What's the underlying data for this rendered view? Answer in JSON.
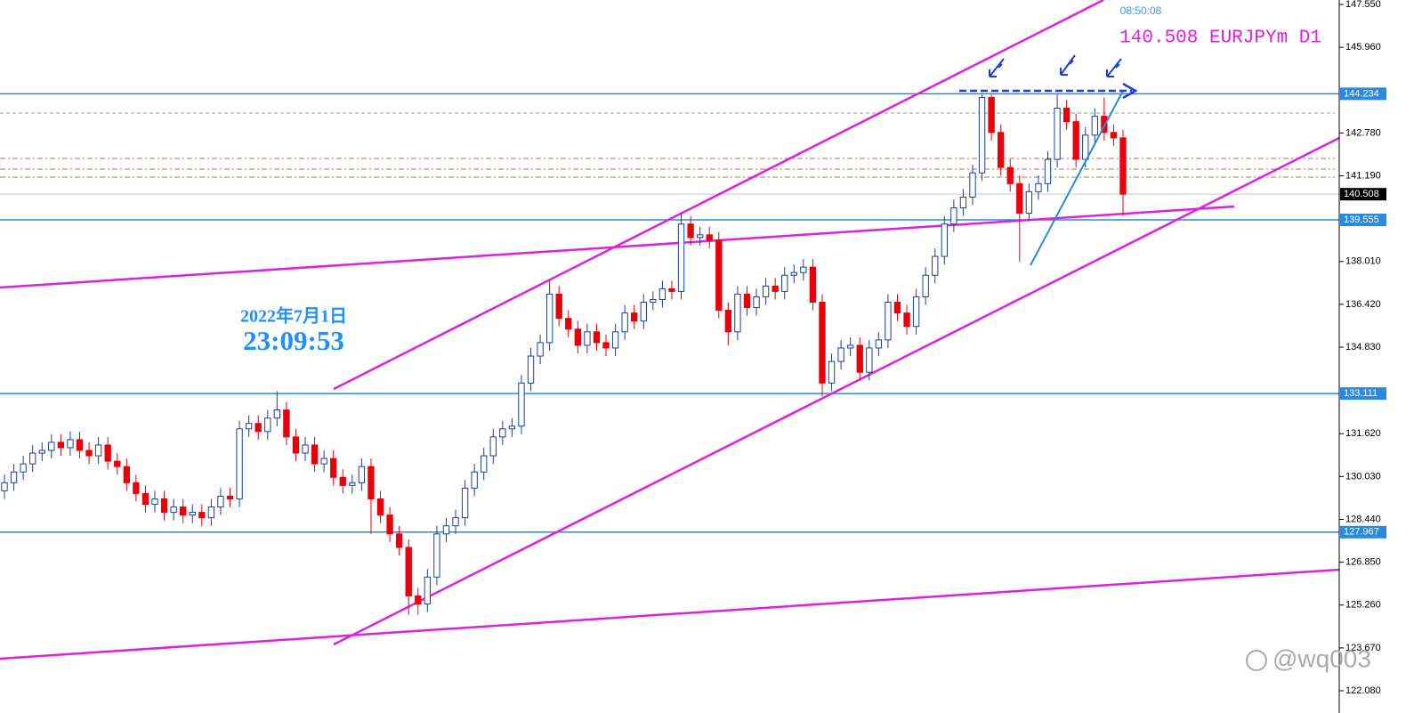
{
  "chart_data": {
    "type": "candlestick",
    "clock": "08:50:08",
    "symbol_label": "140.508 EURJPYm D1",
    "date_text": "2022年7月1日",
    "time_text": "23:09:53",
    "watermark": "@wq003",
    "up_color": "#1c3f9e",
    "down_color": "#e8000b",
    "level_color": "#2a8ae0",
    "ylim": [
      121.75,
      147.715
    ],
    "yticks": [
      {
        "value": 147.55,
        "label": "147.550"
      },
      {
        "value": 145.96,
        "label": "145.960"
      },
      {
        "value": 142.78,
        "label": "142.780"
      },
      {
        "value": 141.19,
        "label": "141.190"
      },
      {
        "value": 138.01,
        "label": "138.010"
      },
      {
        "value": 136.42,
        "label": "136.420"
      },
      {
        "value": 134.83,
        "label": "134.830"
      },
      {
        "value": 131.62,
        "label": "131.620"
      },
      {
        "value": 130.03,
        "label": "130.030"
      },
      {
        "value": 128.44,
        "label": "128.440"
      },
      {
        "value": 126.85,
        "label": "126.850"
      },
      {
        "value": 125.26,
        "label": "125.260"
      },
      {
        "value": 123.67,
        "label": "123.670"
      },
      {
        "value": 122.08,
        "label": "122.080"
      }
    ],
    "levels": [
      144.234,
      139.555,
      133.111,
      127.967
    ],
    "current_price": 140.508,
    "grid": false,
    "open": [
      129.5,
      129.8,
      130.2,
      130.5,
      130.9,
      131.0,
      131.3,
      131.1,
      131.4,
      131.0,
      130.8,
      131.2,
      130.6,
      130.4,
      129.8,
      129.4,
      129.0,
      129.2,
      128.7,
      128.9,
      128.6,
      128.7,
      128.5,
      128.9,
      129.3,
      129.2,
      131.8,
      132.0,
      131.7,
      132.2,
      132.5,
      131.5,
      130.9,
      131.2,
      130.5,
      130.7,
      130.0,
      129.7,
      129.8,
      130.4,
      129.2,
      128.6,
      127.9,
      127.4,
      125.6,
      125.3,
      126.3,
      127.9,
      128.2,
      128.5,
      129.6,
      130.2,
      130.8,
      131.5,
      131.8,
      131.9,
      133.5,
      134.5,
      135.0,
      136.8,
      135.9,
      135.5,
      134.9,
      135.4,
      135.0,
      134.8,
      135.4,
      136.1,
      135.8,
      136.5,
      136.6,
      137.0,
      136.9,
      139.4,
      138.9,
      139.0,
      138.8,
      136.2,
      135.4,
      136.8,
      136.3,
      136.7,
      137.1,
      136.9,
      137.5,
      137.6,
      137.8,
      136.5,
      133.5,
      134.3,
      134.8,
      134.9,
      133.9,
      134.8,
      135.1,
      136.5,
      136.1,
      135.6,
      136.7,
      137.5,
      138.2,
      139.4,
      140.0,
      140.4,
      141.3,
      144.1,
      142.8,
      141.5,
      140.9,
      139.8,
      140.6,
      140.9,
      141.8,
      143.7,
      143.2,
      141.8,
      142.7,
      143.4,
      142.8,
      142.6
    ],
    "high": [
      130.1,
      130.5,
      130.8,
      131.2,
      131.3,
      131.6,
      131.6,
      131.7,
      131.7,
      131.3,
      131.5,
      131.5,
      130.9,
      130.7,
      130.1,
      129.7,
      129.5,
      129.5,
      129.2,
      129.2,
      129.0,
      129.0,
      129.2,
      129.6,
      129.6,
      132.1,
      132.3,
      132.3,
      132.5,
      133.2,
      132.8,
      131.8,
      131.5,
      131.5,
      131.0,
      131.0,
      130.3,
      130.1,
      130.7,
      130.7,
      129.5,
      128.9,
      128.2,
      127.7,
      125.9,
      126.6,
      128.2,
      128.5,
      128.8,
      129.9,
      130.5,
      131.1,
      131.8,
      132.1,
      132.2,
      133.8,
      134.8,
      135.3,
      137.3,
      137.1,
      136.2,
      135.8,
      135.7,
      135.7,
      135.3,
      135.7,
      136.4,
      136.4,
      136.8,
      136.9,
      137.3,
      137.3,
      139.8,
      139.7,
      139.3,
      139.3,
      139.1,
      136.5,
      137.1,
      137.1,
      137.0,
      137.4,
      137.4,
      137.8,
      137.9,
      138.1,
      138.1,
      136.8,
      134.6,
      135.1,
      135.2,
      135.2,
      135.1,
      135.4,
      136.8,
      136.8,
      136.4,
      137.0,
      137.8,
      138.5,
      139.7,
      140.3,
      140.7,
      141.6,
      144.2,
      144.2,
      143.1,
      141.8,
      141.2,
      140.9,
      141.2,
      142.1,
      144.2,
      144.0,
      143.5,
      143.0,
      143.7,
      144.1,
      143.1,
      142.9
    ],
    "low": [
      129.2,
      129.5,
      129.9,
      130.2,
      130.6,
      130.7,
      130.8,
      130.8,
      130.7,
      130.5,
      130.5,
      130.3,
      130.1,
      129.5,
      129.1,
      128.7,
      128.7,
      128.4,
      128.4,
      128.3,
      128.3,
      128.2,
      128.2,
      128.6,
      128.9,
      128.9,
      131.5,
      131.4,
      131.4,
      131.9,
      131.2,
      130.6,
      130.6,
      130.2,
      130.2,
      129.7,
      129.4,
      129.4,
      129.5,
      127.9,
      128.3,
      127.6,
      127.1,
      124.9,
      124.9,
      125.0,
      126.0,
      127.6,
      127.9,
      128.2,
      129.3,
      129.9,
      130.5,
      131.2,
      131.5,
      131.6,
      133.2,
      134.2,
      134.7,
      135.6,
      135.2,
      134.6,
      134.6,
      134.7,
      134.5,
      134.5,
      135.1,
      135.5,
      135.5,
      136.2,
      136.3,
      136.6,
      136.6,
      138.6,
      138.6,
      138.5,
      135.9,
      134.9,
      135.1,
      136.0,
      136.0,
      136.4,
      136.6,
      136.6,
      137.2,
      137.3,
      136.2,
      133.0,
      133.2,
      134.0,
      134.5,
      133.6,
      133.6,
      134.5,
      134.8,
      135.8,
      135.3,
      135.3,
      136.4,
      137.2,
      137.9,
      139.1,
      139.7,
      140.1,
      141.0,
      142.5,
      141.2,
      140.6,
      138.0,
      139.5,
      140.3,
      140.6,
      141.5,
      142.9,
      141.5,
      141.5,
      142.4,
      142.5,
      142.3,
      139.7
    ],
    "close": [
      129.8,
      130.2,
      130.5,
      130.9,
      131.0,
      131.3,
      131.1,
      131.4,
      131.0,
      130.8,
      131.2,
      130.6,
      130.4,
      129.8,
      129.4,
      129.0,
      129.2,
      128.7,
      128.9,
      128.6,
      128.7,
      128.5,
      128.9,
      129.3,
      129.2,
      131.8,
      132.0,
      131.7,
      132.2,
      132.5,
      131.5,
      130.9,
      131.2,
      130.5,
      130.7,
      130.0,
      129.7,
      129.8,
      130.4,
      129.2,
      128.6,
      127.9,
      127.4,
      125.6,
      125.3,
      126.3,
      127.9,
      128.2,
      128.5,
      129.6,
      130.2,
      130.8,
      131.5,
      131.8,
      131.9,
      133.5,
      134.5,
      135.0,
      136.8,
      135.9,
      135.5,
      134.9,
      135.4,
      135.0,
      134.8,
      135.4,
      136.1,
      135.8,
      136.5,
      136.6,
      137.0,
      136.9,
      139.4,
      138.9,
      139.0,
      138.8,
      136.2,
      135.4,
      136.8,
      136.3,
      136.7,
      137.1,
      136.9,
      137.5,
      137.6,
      137.8,
      136.5,
      133.5,
      134.3,
      134.8,
      134.9,
      133.9,
      134.8,
      135.1,
      136.5,
      136.1,
      135.6,
      136.7,
      137.5,
      138.2,
      139.4,
      140.0,
      140.4,
      141.3,
      144.1,
      142.8,
      141.5,
      140.9,
      139.8,
      140.6,
      140.9,
      141.8,
      143.7,
      143.2,
      141.8,
      142.7,
      143.4,
      142.8,
      142.6,
      140.508
    ]
  }
}
